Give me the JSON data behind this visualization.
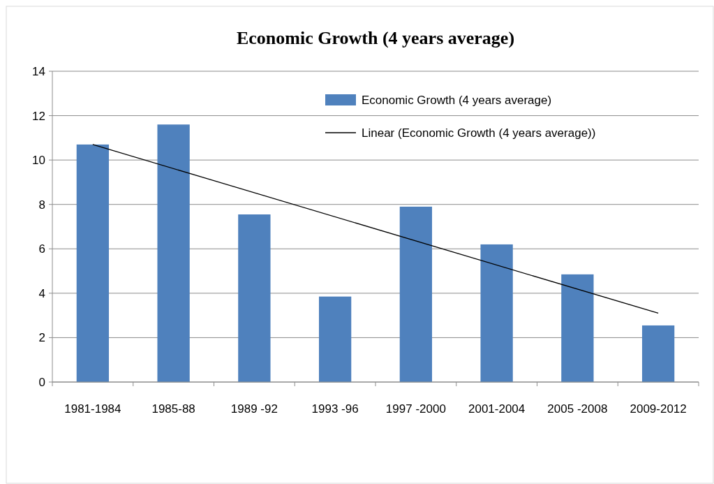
{
  "chart_data": {
    "type": "bar",
    "title": "Economic Growth (4 years average)",
    "categories": [
      "1981-1984",
      "1985-88",
      "1989 -92",
      "1993 -96",
      "1997 -2000",
      "2001-2004",
      "2005 -2008",
      "2009-2012"
    ],
    "series": [
      {
        "name": "Economic Growth (4 years average)",
        "color": "#4f81bd",
        "values": [
          10.7,
          11.6,
          7.55,
          3.85,
          7.9,
          6.2,
          4.85,
          2.55
        ]
      },
      {
        "name": "Linear (Economic Growth (4 years average))",
        "type": "line",
        "color": "#000000",
        "x": [
          "1981-1984",
          "2009-2012"
        ],
        "values": [
          10.7,
          3.1
        ]
      }
    ],
    "ylim": [
      0,
      14
    ],
    "yticks": [
      0,
      2,
      4,
      6,
      8,
      10,
      12,
      14
    ],
    "grid": "y",
    "legend": "top right",
    "marker": "none",
    "line_style": "solid"
  }
}
